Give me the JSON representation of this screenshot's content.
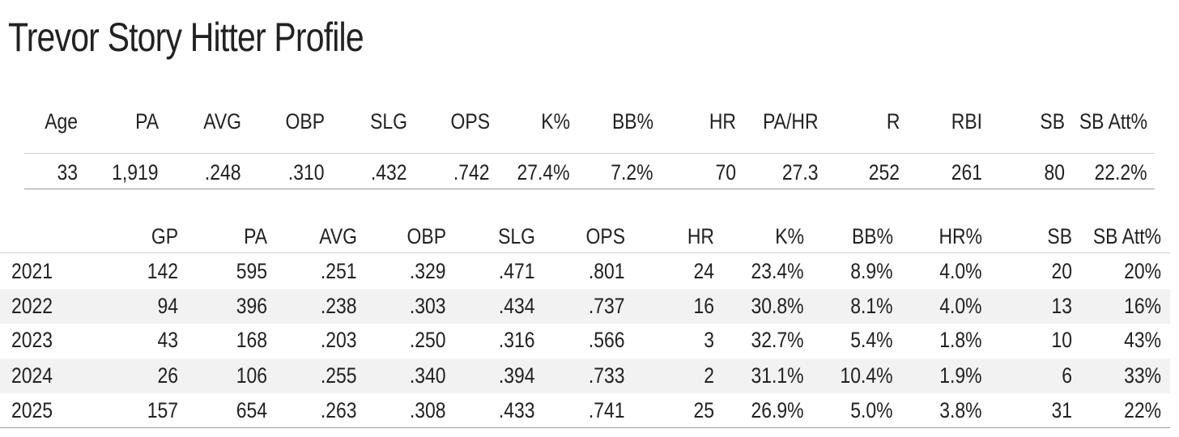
{
  "title": "Trevor Story Hitter Profile",
  "summary": {
    "headers": [
      "Age",
      "PA",
      "AVG",
      "OBP",
      "SLG",
      "OPS",
      "K%",
      "BB%",
      "HR",
      "PA/HR",
      "R",
      "RBI",
      "SB",
      "SB Att%"
    ],
    "values": [
      "33",
      "1,919",
      ".248",
      ".310",
      ".432",
      ".742",
      "27.4%",
      "7.2%",
      "70",
      "27.3",
      "252",
      "261",
      "80",
      "22.2%"
    ]
  },
  "seasons": {
    "headers": [
      "",
      "GP",
      "PA",
      "AVG",
      "OBP",
      "SLG",
      "OPS",
      "HR",
      "K%",
      "BB%",
      "HR%",
      "SB",
      "SB Att%"
    ],
    "rows": [
      [
        "2021",
        "142",
        "595",
        ".251",
        ".329",
        ".471",
        ".801",
        "24",
        "23.4%",
        "8.9%",
        "4.0%",
        "20",
        "20%"
      ],
      [
        "2022",
        "94",
        "396",
        ".238",
        ".303",
        ".434",
        ".737",
        "16",
        "30.8%",
        "8.1%",
        "4.0%",
        "13",
        "16%"
      ],
      [
        "2023",
        "43",
        "168",
        ".203",
        ".250",
        ".316",
        ".566",
        "3",
        "32.7%",
        "5.4%",
        "1.8%",
        "10",
        "43%"
      ],
      [
        "2024",
        "26",
        "106",
        ".255",
        ".340",
        ".394",
        ".733",
        "2",
        "31.1%",
        "10.4%",
        "1.9%",
        "6",
        "33%"
      ],
      [
        "2025",
        "157",
        "654",
        ".263",
        ".308",
        ".433",
        ".741",
        "25",
        "26.9%",
        "5.0%",
        "3.8%",
        "31",
        "22%"
      ]
    ]
  }
}
